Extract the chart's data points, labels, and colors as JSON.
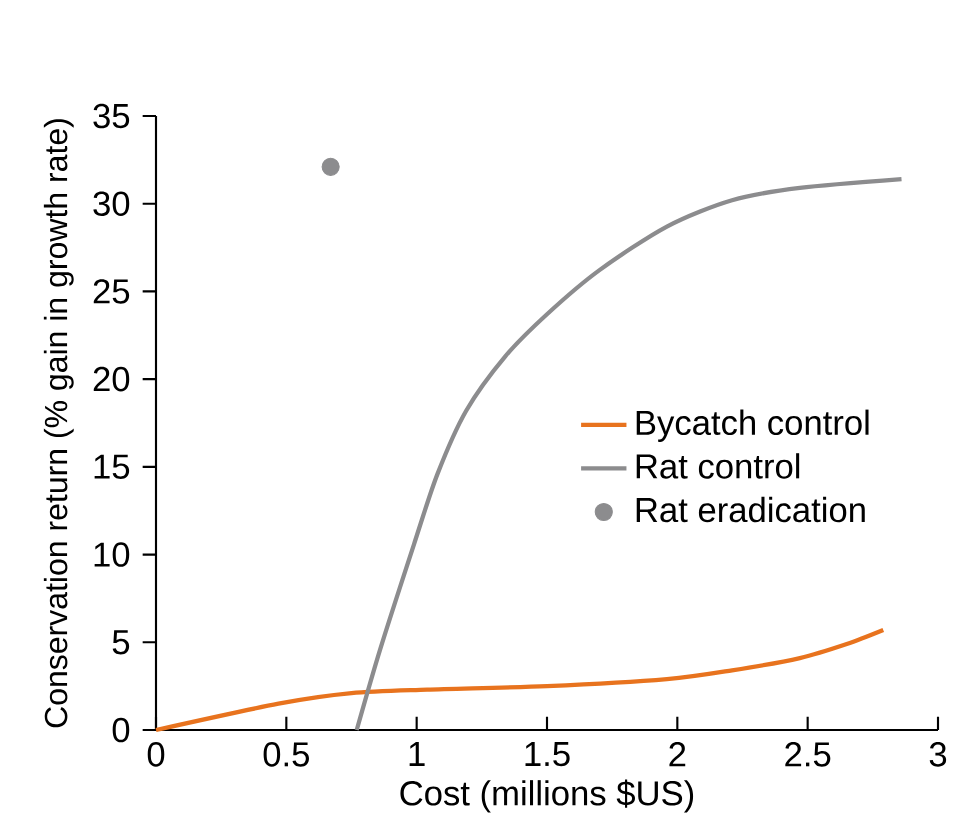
{
  "chart_data": {
    "type": "line",
    "xlabel": "Cost (millions $US)",
    "ylabel": "Conservation return (% gain in growth rate)",
    "xlim": [
      0,
      3
    ],
    "ylim": [
      0,
      35
    ],
    "xticks": [
      0,
      0.5,
      1,
      1.5,
      2,
      2.5,
      3
    ],
    "yticks": [
      0,
      5,
      10,
      15,
      20,
      25,
      30,
      35
    ],
    "legend": "right",
    "grid": false,
    "series": [
      {
        "name": "Bycatch control",
        "color": "#e8731e",
        "x": [
          0,
          0.47,
          0.75,
          1.04,
          1.5,
          1.96,
          2.21,
          2.47,
          2.65,
          2.79
        ],
        "values": [
          0,
          1.5,
          2.1,
          2.3,
          2.5,
          2.9,
          3.4,
          4.1,
          4.9,
          5.7
        ]
      },
      {
        "name": "Rat control",
        "color": "#8c8c8e",
        "x": [
          0.77,
          0.86,
          0.99,
          1.08,
          1.19,
          1.34,
          1.5,
          1.7,
          1.96,
          2.21,
          2.47,
          2.86
        ],
        "values": [
          0,
          4.6,
          10.6,
          14.6,
          18.2,
          21.3,
          23.7,
          26.2,
          28.7,
          30.2,
          30.9,
          31.4
        ]
      },
      {
        "name": "Rat eradication",
        "type": "scatter",
        "marker": "circle",
        "color": "#8c8c8e",
        "x": [
          0.67
        ],
        "values": [
          32.1
        ]
      }
    ]
  }
}
